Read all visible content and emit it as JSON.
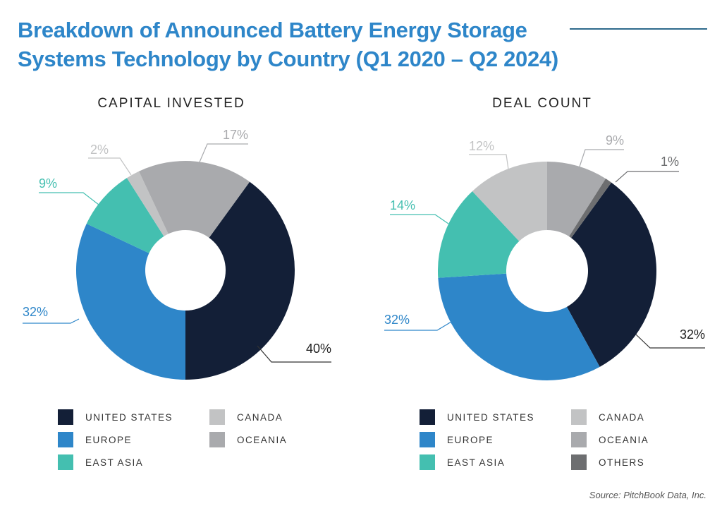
{
  "title_line1": "Breakdown of Announced Battery Energy Storage",
  "title_line2": "Systems Technology by Country  (Q1 2020 – Q2 2024)",
  "source": "Source: PitchBook Data, Inc.",
  "colors": {
    "United States": "#131f37",
    "Europe": "#2e86c9",
    "East Asia": "#44bfb0",
    "Canada": "#c2c3c4",
    "Oceania": "#a9aaad",
    "Others": "#6d6e70"
  },
  "chart_data": [
    {
      "type": "pie",
      "donut": true,
      "title": "CAPITAL INVESTED",
      "categories": [
        "United States",
        "Europe",
        "East Asia",
        "Canada",
        "Oceania"
      ],
      "values": [
        40,
        32,
        9,
        2,
        17
      ],
      "labels": [
        "40%",
        "32%",
        "9%",
        "2%",
        "17%"
      ],
      "legend": [
        "UNITED STATES",
        "EUROPE",
        "EAST ASIA",
        "CANADA",
        "OCEANIA"
      ]
    },
    {
      "type": "pie",
      "donut": true,
      "title": "DEAL COUNT",
      "categories": [
        "United States",
        "Europe",
        "East Asia",
        "Canada",
        "Oceania",
        "Others"
      ],
      "values": [
        32,
        32,
        14,
        12,
        9,
        1
      ],
      "labels": [
        "32%",
        "32%",
        "14%",
        "12%",
        "9%",
        "1%"
      ],
      "legend": [
        "UNITED STATES",
        "EUROPE",
        "EAST ASIA",
        "CANADA",
        "OCEANIA",
        "OTHERS"
      ]
    }
  ]
}
